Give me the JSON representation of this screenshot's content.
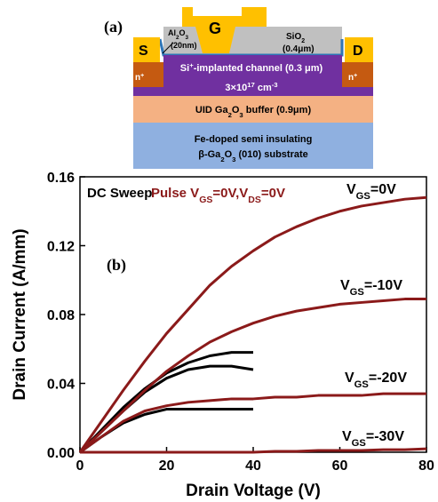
{
  "diagram": {
    "panel_label": "(a)",
    "labels": [
      [
        {
          "text": "G"
        }
      ],
      [
        {
          "text": "S"
        }
      ],
      [
        {
          "text": "D"
        }
      ],
      [
        {
          "text": "Al"
        },
        {
          "sub": "2"
        },
        {
          "text": "O"
        },
        {
          "sub": "3"
        }
      ],
      [
        {
          "text": "(20nm)"
        }
      ],
      [
        {
          "text": "SiO"
        },
        {
          "sub": "2"
        }
      ],
      [
        {
          "text": "(0.4μm)"
        }
      ],
      [
        {
          "text": "n"
        },
        {
          "sup": "+"
        }
      ],
      [
        {
          "text": "n"
        },
        {
          "sup": "+"
        }
      ],
      [
        {
          "text": "Si"
        },
        {
          "sup": "+"
        },
        {
          "text": "-implanted channel (0.3 μm)"
        }
      ],
      [
        {
          "text": "3×10"
        },
        {
          "sup": "17"
        },
        {
          "text": " cm"
        },
        {
          "sup": "-3"
        }
      ],
      [
        {
          "text": "UID Ga"
        },
        {
          "sub": "2"
        },
        {
          "text": "O"
        },
        {
          "sub": "3"
        },
        {
          "text": " buffer (0.9μm)"
        }
      ],
      [
        {
          "text": "Fe-doped semi insulating"
        }
      ],
      [
        {
          "text": "β-Ga"
        },
        {
          "sub": "2"
        },
        {
          "text": "O"
        },
        {
          "sub": "3"
        },
        {
          "text": " (010) substrate"
        }
      ]
    ]
  },
  "chart_data": {
    "type": "line",
    "panel_label": "(b)",
    "x_label": "Drain Voltage (V)",
    "y_label": "Drain Current (A/mm)",
    "xlim": [
      0,
      80
    ],
    "xticks": [
      0,
      20,
      40,
      60,
      80
    ],
    "ylim": [
      0,
      0.16
    ],
    "yticks": [
      {
        "value": 0,
        "label": "0.00"
      },
      0.04,
      0.08,
      0.12,
      0.16
    ],
    "curve_labels": [
      [
        {
          "text": "V"
        },
        {
          "sub": "GS"
        },
        {
          "text": "=0V"
        }
      ],
      [
        {
          "text": "V"
        },
        {
          "sub": "GS"
        },
        {
          "text": "=-10V"
        }
      ],
      [
        {
          "text": "V"
        },
        {
          "sub": "GS"
        },
        {
          "text": "=-20V"
        }
      ],
      [
        {
          "text": "V"
        },
        {
          "sub": "GS"
        },
        {
          "text": "=-30V"
        }
      ]
    ],
    "series": [
      {
        "name": [
          {
            "text": "DC Sweep"
          }
        ],
        "color": "#000000",
        "x": [
          0,
          5,
          10,
          15,
          20,
          25,
          30,
          35,
          40
        ],
        "curves": [
          [
            0,
            0.013,
            0.026,
            0.037,
            0.046,
            0.052,
            0.056,
            0.058,
            0.058
          ],
          [
            0,
            0.012,
            0.024,
            0.035,
            0.043,
            0.048,
            0.05,
            0.05,
            0.048
          ],
          [
            0,
            0.009,
            0.017,
            0.022,
            0.025,
            0.025,
            0.025,
            0.025,
            0.025
          ],
          [
            0,
            0,
            0,
            0,
            0,
            0,
            0,
            0,
            0
          ]
        ]
      },
      {
        "name": [
          {
            "text": "Pulse V"
          },
          {
            "sub": "GS"
          },
          {
            "text": "=0V,V"
          },
          {
            "sub": "DS"
          },
          {
            "text": "=0V"
          }
        ],
        "color": "#8b1a1a",
        "x": [
          0,
          5,
          10,
          15,
          20,
          25,
          30,
          35,
          40,
          45,
          50,
          55,
          60,
          65,
          70,
          75,
          80
        ],
        "curves": [
          [
            0,
            0.018,
            0.036,
            0.053,
            0.069,
            0.083,
            0.097,
            0.108,
            0.117,
            0.125,
            0.131,
            0.136,
            0.14,
            0.143,
            0.145,
            0.147,
            0.148
          ],
          [
            0,
            0.012,
            0.024,
            0.036,
            0.047,
            0.056,
            0.064,
            0.07,
            0.075,
            0.079,
            0.082,
            0.084,
            0.086,
            0.087,
            0.088,
            0.089,
            0.089
          ],
          [
            0,
            0.009,
            0.018,
            0.024,
            0.027,
            0.029,
            0.03,
            0.031,
            0.031,
            0.032,
            0.032,
            0.033,
            0.033,
            0.033,
            0.034,
            0.034,
            0.034
          ],
          [
            0,
            0,
            0,
            0,
            0,
            0,
            0,
            0,
            0,
            0.0005,
            0.0005,
            0.001,
            0.001,
            0.001,
            0.0015,
            0.0015,
            0.002
          ]
        ]
      }
    ]
  }
}
